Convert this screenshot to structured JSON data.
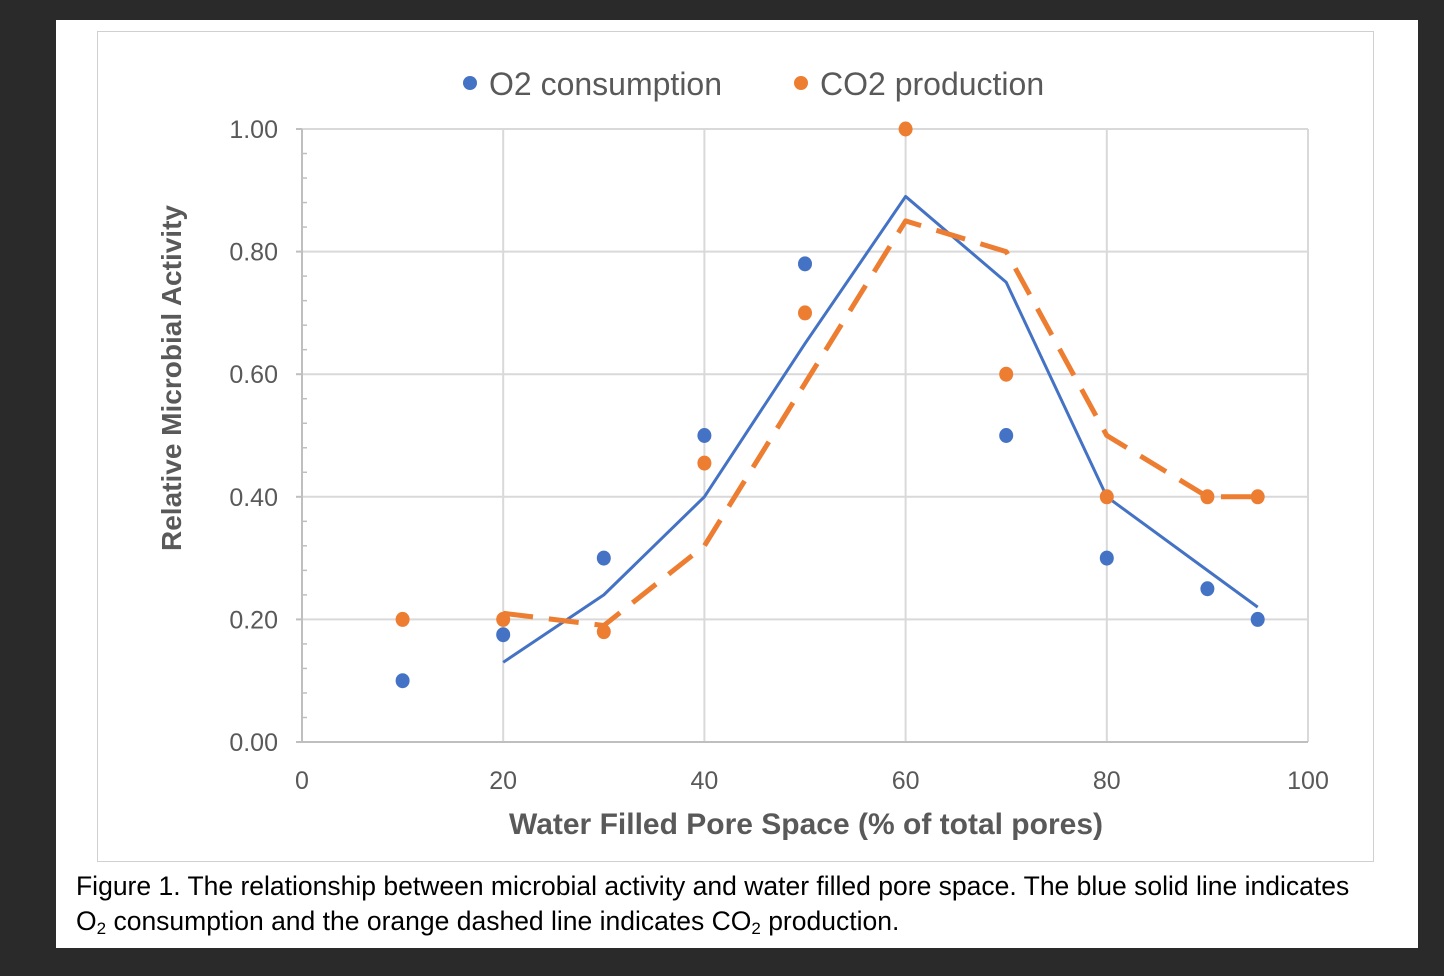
{
  "chart_data": {
    "type": "scatter",
    "title": "",
    "xlabel": "Water Filled Pore Space (% of total pores)",
    "ylabel": "Relative Microbial Activity",
    "xlim": [
      0,
      100
    ],
    "ylim": [
      0,
      1.0
    ],
    "xticks": [
      "0",
      "20",
      "40",
      "60",
      "80",
      "100"
    ],
    "yticks": [
      "0.00",
      "0.20",
      "0.40",
      "0.60",
      "0.80",
      "1.00"
    ],
    "grid": true,
    "legend_position": "top",
    "series": [
      {
        "name": "O2 consumption",
        "color": "#4472C4",
        "points": {
          "x": [
            10,
            20,
            30,
            40,
            50,
            70,
            80,
            90,
            95
          ],
          "y": [
            0.1,
            0.175,
            0.3,
            0.5,
            0.78,
            0.5,
            0.3,
            0.25,
            0.2
          ]
        },
        "trend_line": {
          "style": "solid",
          "x": [
            20,
            30,
            40,
            50,
            60,
            70,
            80,
            90,
            95
          ],
          "y": [
            0.13,
            0.24,
            0.4,
            0.65,
            0.89,
            0.75,
            0.4,
            0.28,
            0.22
          ]
        }
      },
      {
        "name": "CO2 production",
        "color": "#ED7D31",
        "points": {
          "x": [
            10,
            20,
            30,
            40,
            50,
            60,
            70,
            80,
            90,
            95
          ],
          "y": [
            0.2,
            0.2,
            0.18,
            0.455,
            0.7,
            1.0,
            0.6,
            0.4,
            0.4,
            0.4
          ]
        },
        "trend_line": {
          "style": "dashed",
          "x": [
            20,
            30,
            40,
            50,
            60,
            70,
            80,
            90,
            95
          ],
          "y": [
            0.21,
            0.19,
            0.32,
            0.585,
            0.85,
            0.8,
            0.5,
            0.4,
            0.4
          ]
        }
      }
    ]
  },
  "caption": {
    "part1": "Figure 1. The relationship between microbial activity and water filled pore space. The blue solid line indicates O",
    "sub1": "2",
    "part2": " consumption and the orange dashed line indicates CO",
    "sub2": "2",
    "part3": " production."
  }
}
